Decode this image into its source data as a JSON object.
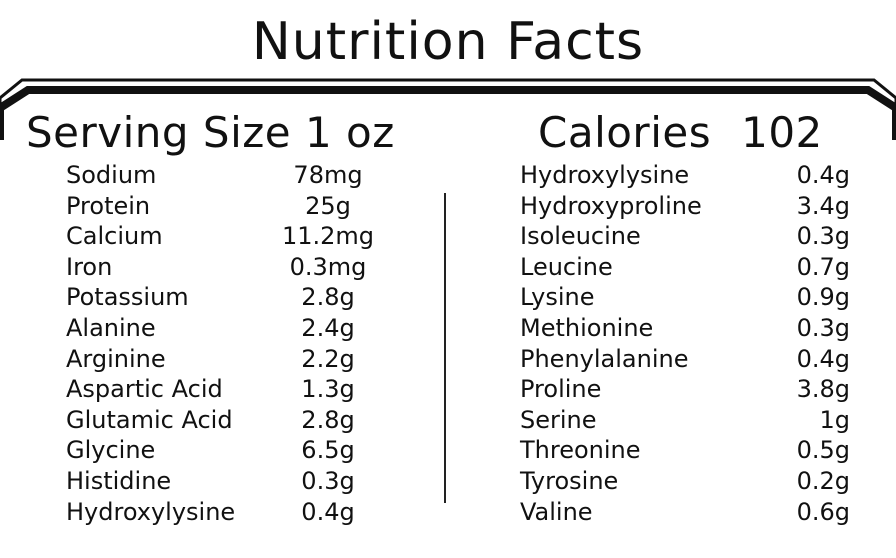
{
  "title": "Nutrition Facts",
  "serving": "Serving Size 1 oz",
  "calories": {
    "label": "Calories",
    "value": "102"
  },
  "left_nutrients": [
    {
      "name": "Sodium",
      "value": "78mg"
    },
    {
      "name": "Protein",
      "value": "25g"
    },
    {
      "name": "Calcium",
      "value": "11.2mg"
    },
    {
      "name": "Iron",
      "value": "0.3mg"
    },
    {
      "name": "Potassium",
      "value": "2.8g"
    },
    {
      "name": "Alanine",
      "value": "2.4g"
    },
    {
      "name": "Arginine",
      "value": "2.2g"
    },
    {
      "name": "Aspartic Acid",
      "value": "1.3g"
    },
    {
      "name": "Glutamic Acid",
      "value": "2.8g"
    },
    {
      "name": "Glycine",
      "value": "6.5g"
    },
    {
      "name": "Histidine",
      "value": "0.3g"
    },
    {
      "name": "Hydroxylysine",
      "value": "0.4g"
    }
  ],
  "right_nutrients": [
    {
      "name": "Hydroxylysine",
      "value": "0.4g"
    },
    {
      "name": "Hydroxyproline",
      "value": "3.4g"
    },
    {
      "name": "Isoleucine",
      "value": "0.3g"
    },
    {
      "name": "Leucine",
      "value": "0.7g"
    },
    {
      "name": "Lysine",
      "value": "0.9g"
    },
    {
      "name": "Methionine",
      "value": "0.3g"
    },
    {
      "name": "Phenylalanine",
      "value": "0.4g"
    },
    {
      "name": "Proline",
      "value": "3.8g"
    },
    {
      "name": "Serine",
      "value": "1g"
    },
    {
      "name": "Threonine",
      "value": "0.5g"
    },
    {
      "name": "Tyrosine",
      "value": "0.2g"
    },
    {
      "name": "Valine",
      "value": "0.6g"
    }
  ]
}
